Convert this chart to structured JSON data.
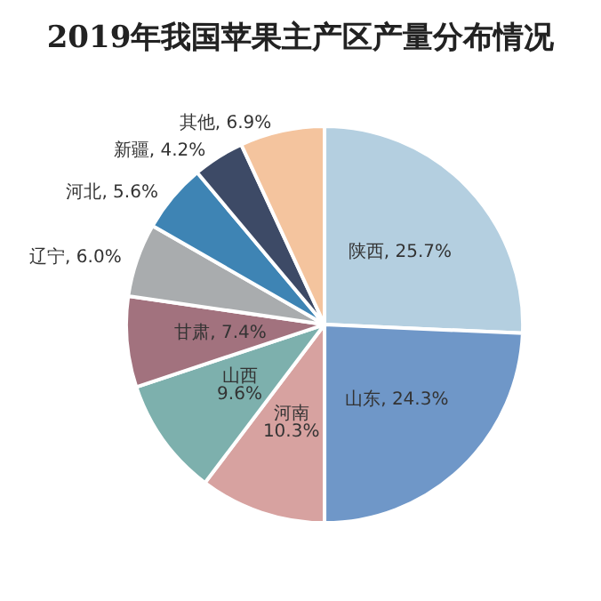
{
  "chart_data": {
    "type": "pie",
    "title": "2019年我国苹果主产区产量分布情况",
    "categories": [
      "陕西",
      "山东",
      "河南",
      "山西",
      "甘肃",
      "辽宁",
      "河北",
      "新疆",
      "其他"
    ],
    "values": [
      25.7,
      24.3,
      10.3,
      9.6,
      7.4,
      6.0,
      5.6,
      4.2,
      6.9
    ],
    "colors": [
      "#b4cfe0",
      "#6f97c8",
      "#d7a2a0",
      "#7db0ad",
      "#a2727e",
      "#a9acae",
      "#3e84b4",
      "#3d4a66",
      "#f4c49e"
    ],
    "value_labels": [
      "25.7%",
      "24.3%",
      "10.3%",
      "9.6%",
      "7.4%",
      "6.0%",
      "5.6%",
      "4.2%",
      "6.9%"
    ],
    "data_labels": true,
    "legend": false
  }
}
